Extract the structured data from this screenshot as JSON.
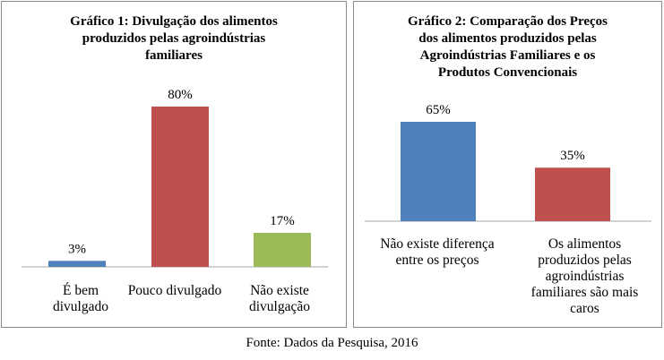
{
  "chart_data": [
    {
      "type": "bar",
      "title": "Gráfico 1: Divulgação dos alimentos\nproduzidos pelas agroindústrias\nfamiliares",
      "categories": [
        "É bem\ndivulgado",
        "Pouco divulgado",
        "Não existe\ndivulgação"
      ],
      "values": [
        3,
        80,
        17
      ],
      "data_labels": [
        "3%",
        "80%",
        "17%"
      ],
      "colors": [
        "#4f81bd",
        "#c0504d",
        "#9bbb59"
      ],
      "ylim": [
        0,
        80
      ],
      "grid": false,
      "legend": "none"
    },
    {
      "type": "bar",
      "title": "Gráfico 2: Comparação dos Preços\ndos alimentos produzidos pelas\nAgroindústrias Familiares e os\nProdutos Convencionais",
      "categories": [
        "Não existe diferença\nentre os preços",
        "Os alimentos\nproduzidos pelas\nagroindústrias\nfamiliares são mais\ncaros"
      ],
      "values": [
        65,
        35
      ],
      "data_labels": [
        "65%",
        "35%"
      ],
      "colors": [
        "#4f81bd",
        "#c0504d"
      ],
      "ylim": [
        0,
        65
      ],
      "grid": false,
      "legend": "none"
    }
  ],
  "source": "Fonte: Dados da Pesquisa, 2016"
}
